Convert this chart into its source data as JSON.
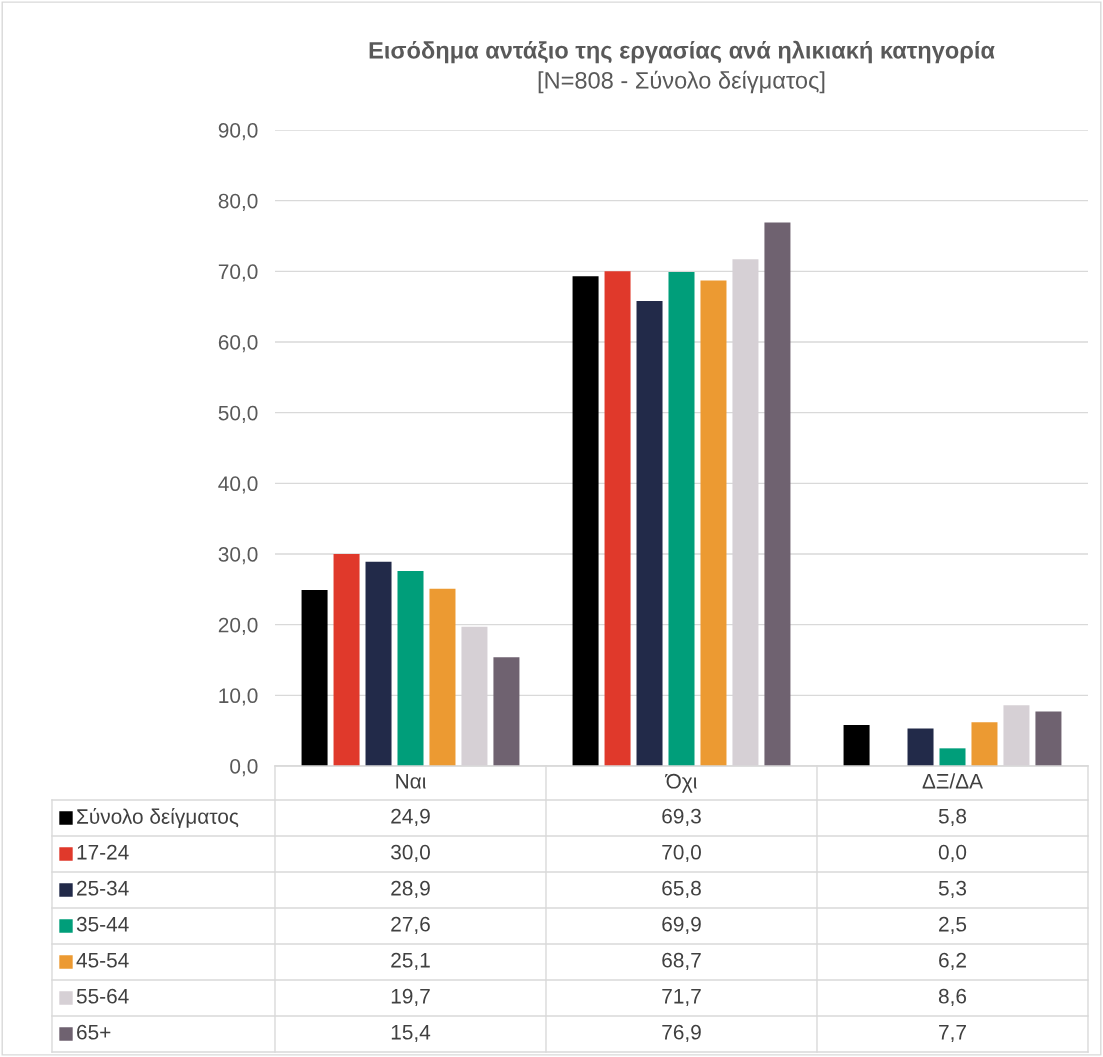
{
  "chart_data": {
    "type": "bar",
    "title": "Εισόδημα αντάξιο της εργασίας ανά ηλικιακή κατηγορία",
    "subtitle": "[N=808 - Σύνολο δείγματος]",
    "categories": [
      "Ναι",
      "Όχι",
      "ΔΞ/ΔΑ"
    ],
    "series": [
      {
        "name": "Σύνολο δείγματος",
        "color": "#000000",
        "values": [
          24.9,
          69.3,
          5.8
        ],
        "value_labels": [
          "24,9",
          "69,3",
          "5,8"
        ]
      },
      {
        "name": "17-24",
        "color": "#e0392b",
        "values": [
          30.0,
          70.0,
          0.0
        ],
        "value_labels": [
          "30,0",
          "70,0",
          "0,0"
        ]
      },
      {
        "name": "25-34",
        "color": "#222a49",
        "values": [
          28.9,
          65.8,
          5.3
        ],
        "value_labels": [
          "28,9",
          "65,8",
          "5,3"
        ]
      },
      {
        "name": "35-44",
        "color": "#009e7a",
        "values": [
          27.6,
          69.9,
          2.5
        ],
        "value_labels": [
          "27,6",
          "69,9",
          "2,5"
        ]
      },
      {
        "name": "45-54",
        "color": "#ec9a32",
        "values": [
          25.1,
          68.7,
          6.2
        ],
        "value_labels": [
          "25,1",
          "68,7",
          "6,2"
        ]
      },
      {
        "name": "55-64",
        "color": "#d6d0d5",
        "values": [
          19.7,
          71.7,
          8.6
        ],
        "value_labels": [
          "19,7",
          "71,7",
          "8,6"
        ]
      },
      {
        "name": "65+",
        "color": "#6f6270",
        "values": [
          15.4,
          76.9,
          7.7
        ],
        "value_labels": [
          "15,4",
          "76,9",
          "7,7"
        ]
      }
    ],
    "ylim": [
      0,
      90
    ],
    "yticks": [
      {
        "value": 0,
        "label": "0,0"
      },
      {
        "value": 10,
        "label": "10,0"
      },
      {
        "value": 20,
        "label": "20,0"
      },
      {
        "value": 30,
        "label": "30,0"
      },
      {
        "value": 40,
        "label": "40,0"
      },
      {
        "value": 50,
        "label": "50,0"
      },
      {
        "value": 60,
        "label": "60,0"
      },
      {
        "value": 70,
        "label": "70,0"
      },
      {
        "value": 80,
        "label": "80,0"
      },
      {
        "value": 90,
        "label": "90,0"
      }
    ],
    "grid": "y",
    "legend": "bottom"
  }
}
